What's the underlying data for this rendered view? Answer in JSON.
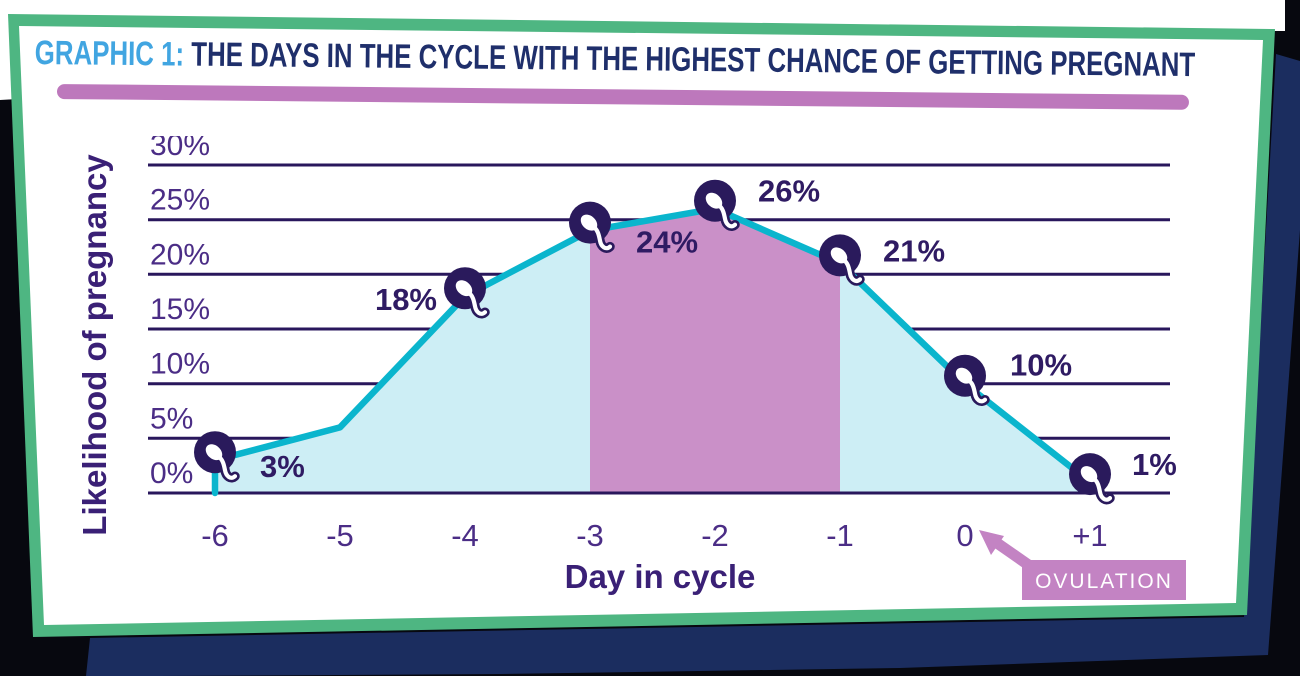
{
  "page": {
    "background_color": "#07080f",
    "backdrop_navy_color": "#1b2d5f",
    "card_border_green": "#4eb682",
    "card_background": "#ffffff"
  },
  "header": {
    "label_prefix": "GRAPHIC 1:",
    "title_rest": " THE DAYS IN THE CYCLE WITH THE HIGHEST CHANCE OF GETTING PREGNANT",
    "prefix_color": "#41a5e1",
    "title_color": "#1f2f6b",
    "divider_color": "#bd78bc"
  },
  "chart_data": {
    "type": "area",
    "title": "The days in the cycle with the highest chance of getting pregnant",
    "xlabel": "Day in cycle",
    "ylabel": "Likelihood of pregnancy",
    "x_tick_labels": [
      "-6",
      "-5",
      "-4",
      "-3",
      "-2",
      "-1",
      "0",
      "+1"
    ],
    "values_percent": [
      3,
      6,
      18,
      24,
      26,
      21,
      10,
      1
    ],
    "point_labels": [
      "3%",
      null,
      "18%",
      "24%",
      "26%",
      "21%",
      "10%",
      "1%"
    ],
    "unlabeled_note": "day -5 vertex estimated from line shape; chart shows no marker or label there",
    "ylim": [
      0,
      30
    ],
    "ytick_percent": [
      0,
      5,
      10,
      15,
      20,
      25,
      30
    ],
    "ytick_labels": [
      "0%",
      "5%",
      "10%",
      "15%",
      "20%",
      "25%",
      "30%"
    ],
    "grid": true,
    "legend": false,
    "highlight_days": [
      "-3",
      "-1"
    ],
    "annotation_label": "OVULATION",
    "annotation_points_to_day": "0",
    "colors": {
      "line": "#0ab5cd",
      "area": "#cdeef5",
      "highlight": "#ca90c8",
      "grid": "#29175c",
      "marker": "#2a1a5c",
      "tick_text": "#4b2d86",
      "point_label_text": "#2f1b63",
      "axis_title_text": "#3a2076",
      "annotation_bg": "#c383c3",
      "annotation_text": "#ffffff"
    }
  }
}
